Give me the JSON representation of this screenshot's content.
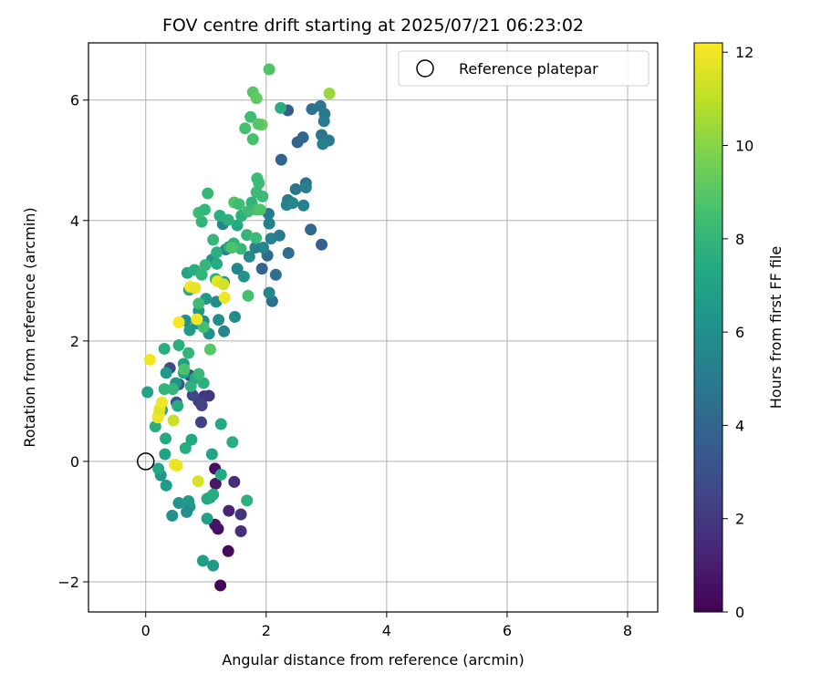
{
  "chart_data": {
    "type": "scatter",
    "title": "FOV centre drift starting at 2025/07/21 06:23:02",
    "xlabel": "Angular distance from reference (arcmin)",
    "ylabel": "Rotation from reference (arcmin)",
    "xlim": [
      -0.95,
      8.5
    ],
    "ylim": [
      -2.5,
      6.95
    ],
    "xticks": [
      0,
      2,
      4,
      6,
      8
    ],
    "xtick_labels": [
      "0",
      "2",
      "4",
      "6",
      "8"
    ],
    "yticks": [
      -2,
      0,
      2,
      4,
      6
    ],
    "ytick_labels": [
      "−2",
      "0",
      "2",
      "4",
      "6"
    ],
    "grid": true,
    "colormap": "viridis",
    "colorbar": {
      "label": "Hours from first FF file",
      "min": 0,
      "max": 12.2,
      "ticks": [
        0,
        2,
        4,
        6,
        8,
        10,
        12
      ],
      "tick_labels": [
        "0",
        "2",
        "4",
        "6",
        "8",
        "10",
        "12"
      ]
    },
    "legend": {
      "location": "upper right",
      "entries": [
        {
          "label": "Reference platepar",
          "marker": "open-circle",
          "x": 0,
          "y": 0
        }
      ]
    },
    "series": [
      {
        "points": [
          [
            1.24,
            -2.06,
            0.1
          ],
          [
            1.37,
            -1.49,
            0.3
          ],
          [
            1.2,
            -1.12,
            0.5
          ],
          [
            1.15,
            -1.05,
            0.7
          ],
          [
            1.38,
            -0.82,
            1.2
          ],
          [
            1.58,
            -0.88,
            1.8
          ],
          [
            1.58,
            -1.16,
            1.6
          ],
          [
            1.15,
            -0.12,
            0.5
          ],
          [
            1.16,
            -0.37,
            0.8
          ],
          [
            1.47,
            -0.34,
            1.5
          ],
          [
            0.97,
            1.08,
            1.8
          ],
          [
            1.05,
            1.09,
            2.0
          ],
          [
            0.88,
            1.0,
            2.2
          ],
          [
            0.93,
            0.93,
            2.4
          ],
          [
            0.78,
            1.1,
            2.6
          ],
          [
            0.73,
            1.43,
            2.7
          ],
          [
            0.4,
            1.55,
            2.8
          ],
          [
            0.51,
            0.98,
            3.0
          ],
          [
            0.92,
            0.65,
            2.3
          ],
          [
            0.55,
            1.28,
            3.2
          ],
          [
            2.36,
            5.83,
            3.6
          ],
          [
            2.52,
            5.3,
            4.0
          ],
          [
            2.61,
            5.38,
            4.0
          ],
          [
            2.25,
            5.01,
            3.9
          ],
          [
            2.92,
            3.6,
            3.7
          ],
          [
            2.74,
            3.85,
            4.1
          ],
          [
            2.37,
            3.46,
            4.3
          ],
          [
            2.1,
            2.66,
            4.5
          ],
          [
            2.02,
            3.42,
            4.2
          ],
          [
            1.93,
            3.2,
            3.9
          ],
          [
            2.16,
            3.1,
            4.4
          ],
          [
            2.76,
            5.85,
            4.6
          ],
          [
            2.9,
            5.9,
            4.8
          ],
          [
            2.97,
            5.77,
            4.9
          ],
          [
            2.96,
            5.65,
            5.0
          ],
          [
            2.92,
            5.42,
            4.8
          ],
          [
            3.04,
            5.33,
            5.0
          ],
          [
            2.94,
            5.27,
            5.2
          ],
          [
            2.66,
            4.62,
            4.6
          ],
          [
            2.49,
            4.52,
            4.8
          ],
          [
            2.66,
            4.55,
            5.1
          ],
          [
            2.36,
            4.34,
            5.0
          ],
          [
            2.34,
            4.26,
            5.3
          ],
          [
            2.44,
            4.29,
            5.6
          ],
          [
            2.62,
            4.25,
            5.2
          ],
          [
            2.04,
            4.11,
            5.0
          ],
          [
            2.05,
            3.95,
            5.3
          ],
          [
            2.08,
            3.7,
            5.4
          ],
          [
            2.22,
            3.75,
            5.0
          ],
          [
            1.95,
            3.55,
            5.6
          ],
          [
            1.82,
            3.55,
            5.2
          ],
          [
            2.05,
            2.8,
            5.7
          ],
          [
            1.52,
            3.2,
            5.5
          ],
          [
            1.48,
            2.4,
            5.8
          ],
          [
            1.3,
            2.16,
            5.6
          ],
          [
            1.21,
            2.35,
            5.9
          ],
          [
            1.17,
            2.65,
            6.0
          ],
          [
            1.33,
            3.52,
            5.4
          ],
          [
            1.28,
            3.94,
            5.6
          ],
          [
            1.1,
            3.35,
            6.1
          ],
          [
            1.63,
            3.07,
            6.2
          ],
          [
            1.72,
            3.4,
            5.8
          ],
          [
            1.05,
            2.12,
            6.0
          ],
          [
            0.85,
            2.29,
            6.3
          ],
          [
            0.73,
            2.18,
            6.5
          ],
          [
            0.66,
            2.34,
            6.1
          ],
          [
            0.88,
            2.5,
            6.4
          ],
          [
            1.0,
            2.7,
            6.6
          ],
          [
            0.96,
            2.33,
            5.8
          ],
          [
            0.5,
            1.3,
            6.2
          ],
          [
            0.34,
            1.47,
            6.5
          ],
          [
            0.63,
            1.62,
            6.8
          ],
          [
            0.44,
            -0.9,
            6.1
          ],
          [
            0.55,
            -0.69,
            6.3
          ],
          [
            0.71,
            -0.66,
            6.6
          ],
          [
            0.73,
            -0.75,
            6.4
          ],
          [
            0.68,
            -0.84,
            6.0
          ],
          [
            0.34,
            -0.4,
            6.7
          ],
          [
            0.25,
            -0.23,
            6.4
          ],
          [
            1.12,
            -1.73,
            6.5
          ],
          [
            0.95,
            -1.65,
            6.8
          ],
          [
            1.02,
            -0.95,
            6.9
          ],
          [
            1.07,
            -0.6,
            6.6
          ],
          [
            0.03,
            1.15,
            7.0
          ],
          [
            0.21,
            -0.12,
            7.2
          ],
          [
            0.32,
            0.12,
            7.0
          ],
          [
            0.76,
            0.36,
            7.3
          ],
          [
            0.66,
            0.22,
            7.5
          ],
          [
            1.1,
            0.12,
            7.2
          ],
          [
            1.25,
            0.62,
            7.4
          ],
          [
            1.44,
            0.32,
            7.6
          ],
          [
            1.02,
            -0.62,
            7.3
          ],
          [
            1.12,
            -0.55,
            7.5
          ],
          [
            1.25,
            -0.22,
            7.4
          ],
          [
            1.68,
            -0.65,
            7.7
          ],
          [
            0.33,
            0.38,
            7.4
          ],
          [
            0.16,
            0.58,
            7.6
          ],
          [
            0.27,
            0.85,
            7.3
          ],
          [
            0.53,
            0.92,
            7.5
          ],
          [
            0.75,
            1.25,
            7.8
          ],
          [
            0.63,
            1.47,
            7.2
          ],
          [
            0.82,
            1.38,
            7.5
          ],
          [
            0.96,
            1.3,
            7.7
          ],
          [
            0.31,
            1.2,
            7.9
          ],
          [
            0.45,
            1.2,
            8.0
          ],
          [
            0.31,
            1.87,
            7.6
          ],
          [
            0.55,
            1.93,
            7.6
          ],
          [
            0.71,
            1.8,
            7.9
          ],
          [
            0.88,
            1.45,
            8.1
          ],
          [
            0.72,
            2.85,
            7.4
          ],
          [
            0.69,
            3.13,
            7.2
          ],
          [
            0.81,
            3.18,
            7.6
          ],
          [
            0.93,
            3.1,
            7.9
          ],
          [
            0.99,
            3.26,
            8.0
          ],
          [
            1.18,
            3.28,
            7.5
          ],
          [
            1.16,
            3.03,
            7.8
          ],
          [
            1.3,
            2.98,
            7.1
          ],
          [
            1.18,
            3.47,
            7.7
          ],
          [
            1.12,
            3.68,
            8.0
          ],
          [
            1.38,
            3.56,
            7.5
          ],
          [
            1.46,
            3.62,
            7.8
          ],
          [
            1.58,
            3.53,
            8.1
          ],
          [
            1.68,
            3.76,
            8.0
          ],
          [
            1.52,
            3.92,
            7.4
          ],
          [
            1.59,
            4.08,
            7.7
          ],
          [
            1.37,
            4.01,
            7.8
          ],
          [
            1.23,
            4.08,
            7.6
          ],
          [
            0.93,
            3.98,
            7.9
          ],
          [
            0.88,
            4.13,
            8.2
          ],
          [
            0.98,
            4.18,
            8.0
          ],
          [
            1.03,
            4.45,
            8.1
          ],
          [
            1.76,
            4.3,
            7.9
          ],
          [
            1.84,
            4.47,
            8.2
          ],
          [
            1.88,
            4.62,
            8.4
          ],
          [
            1.94,
            4.4,
            8.2
          ],
          [
            1.7,
            4.15,
            8.3
          ],
          [
            1.84,
            4.18,
            8.5
          ],
          [
            2.24,
            5.87,
            7.6
          ],
          [
            1.74,
            5.72,
            8.4
          ],
          [
            1.65,
            5.53,
            8.6
          ],
          [
            1.78,
            5.35,
            8.6
          ],
          [
            1.85,
            4.7,
            8.3
          ],
          [
            1.9,
            4.18,
            8.8
          ],
          [
            1.83,
            3.71,
            8.2
          ],
          [
            1.43,
            3.55,
            8.7
          ],
          [
            1.47,
            4.3,
            8.8
          ],
          [
            1.55,
            4.27,
            8.4
          ],
          [
            1.7,
            2.75,
            8.6
          ],
          [
            1.07,
            1.86,
            9.0
          ],
          [
            0.96,
            2.23,
            8.5
          ],
          [
            0.88,
            2.62,
            8.3
          ],
          [
            0.64,
            1.53,
            8.7
          ],
          [
            1.78,
            6.13,
            9.0
          ],
          [
            1.84,
            6.03,
            9.2
          ],
          [
            1.93,
            5.59,
            9.4
          ],
          [
            1.87,
            5.6,
            9.0
          ],
          [
            2.05,
            6.51,
            8.8
          ],
          [
            3.05,
            6.11,
            10.3
          ],
          [
            0.46,
            0.68,
            11.2
          ],
          [
            0.2,
            0.73,
            11.8
          ],
          [
            0.22,
            0.79,
            11.9
          ],
          [
            0.23,
            0.87,
            11.6
          ],
          [
            0.27,
            0.98,
            11.9
          ],
          [
            0.48,
            -0.05,
            12.0
          ],
          [
            0.52,
            -0.07,
            11.8
          ],
          [
            0.87,
            -0.33,
            11.5
          ],
          [
            0.07,
            1.69,
            12.0
          ],
          [
            0.55,
            2.31,
            12.1
          ],
          [
            0.85,
            2.36,
            12.0
          ],
          [
            0.74,
            2.9,
            12.0
          ],
          [
            0.82,
            2.88,
            11.8
          ],
          [
            1.19,
            2.99,
            11.7
          ],
          [
            1.29,
            2.94,
            11.4
          ],
          [
            1.31,
            2.72,
            11.9
          ]
        ]
      }
    ]
  }
}
